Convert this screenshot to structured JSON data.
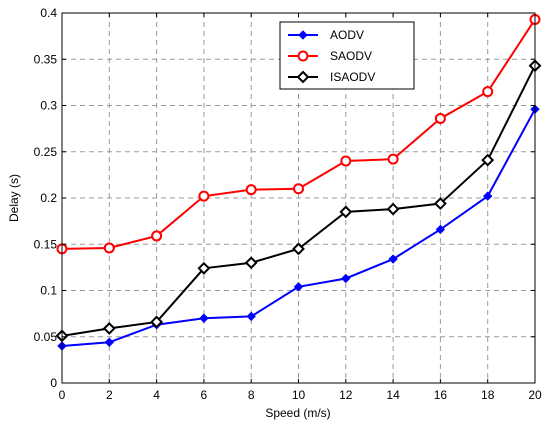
{
  "chart_data": {
    "type": "line",
    "title": "",
    "xlabel": "Speed (m/s)",
    "ylabel": "Delay  (s)",
    "x": [
      0,
      2,
      4,
      6,
      8,
      10,
      12,
      14,
      16,
      18,
      20
    ],
    "xlim": [
      0,
      20
    ],
    "ylim": [
      0,
      0.4
    ],
    "xticks": [
      "0",
      "2",
      "4",
      "6",
      "8",
      "10",
      "12",
      "14",
      "16",
      "18",
      "20"
    ],
    "yticks": [
      "0",
      "0.05",
      "0.1",
      "0.15",
      "0.2",
      "0.25",
      "0.3",
      "0.35",
      "0.4"
    ],
    "grid": true,
    "legend_position": "top-center",
    "series": [
      {
        "name": "AODV",
        "color": "#0000ff",
        "marker": "filled-diamond",
        "values": [
          0.04,
          0.044,
          0.063,
          0.07,
          0.072,
          0.104,
          0.113,
          0.134,
          0.166,
          0.202,
          0.296
        ]
      },
      {
        "name": "SAODV",
        "color": "#ff0000",
        "marker": "open-circle",
        "values": [
          0.145,
          0.146,
          0.159,
          0.202,
          0.209,
          0.21,
          0.24,
          0.242,
          0.286,
          0.315,
          0.393
        ]
      },
      {
        "name": "ISAODV",
        "color": "#000000",
        "marker": "open-diamond",
        "values": [
          0.051,
          0.059,
          0.066,
          0.124,
          0.13,
          0.145,
          0.185,
          0.188,
          0.194,
          0.241,
          0.343
        ]
      }
    ]
  }
}
